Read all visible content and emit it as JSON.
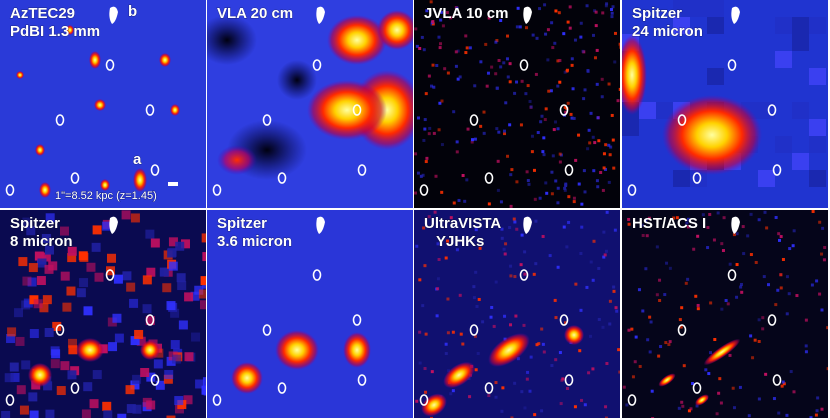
{
  "panels": [
    {
      "label": [
        "AzTEC29",
        "PdBI 1.3 mm"
      ],
      "annotations": [
        "b",
        "a",
        "1\"=8.52 kpc (z=1.45)"
      ]
    },
    {
      "label": [
        "VLA 20 cm"
      ]
    },
    {
      "label": [
        "JVLA 10 cm"
      ]
    },
    {
      "label": [
        "Spitzer",
        "24 micron"
      ]
    },
    {
      "label": [
        "Spitzer",
        "8 micron"
      ]
    },
    {
      "label": [
        "Spitzer",
        "3.6 micron"
      ]
    },
    {
      "label": [
        "UltraVISTA",
        "YJHKs"
      ]
    },
    {
      "label": [
        "HST/ACS I"
      ]
    }
  ]
}
